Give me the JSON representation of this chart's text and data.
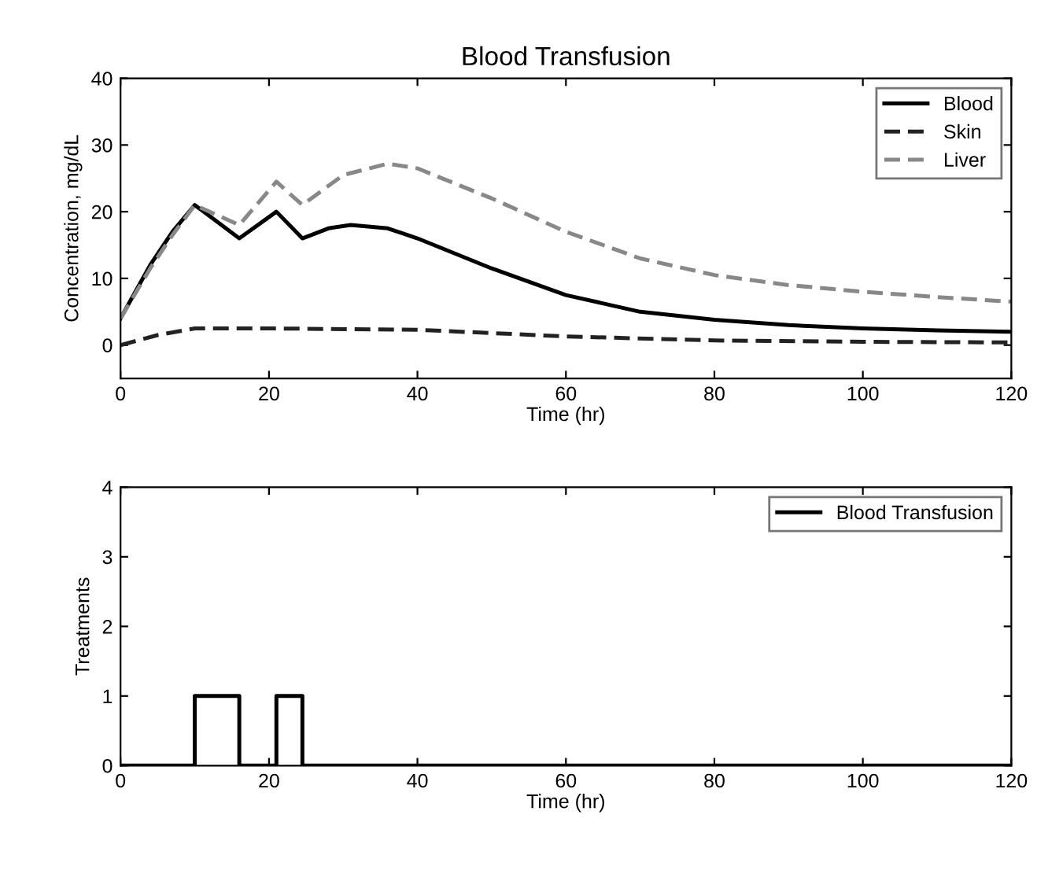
{
  "chart_data": [
    {
      "type": "line",
      "title": "Blood Transfusion",
      "xlabel": "Time (hr)",
      "ylabel": "Concentration, mg/dL",
      "xlim": [
        0,
        120
      ],
      "xticks": [
        0,
        20,
        40,
        60,
        80,
        100,
        120
      ],
      "ylim": [
        -5,
        40
      ],
      "yticks": [
        0,
        10,
        20,
        30,
        40
      ],
      "grid": false,
      "legend": "top right",
      "series": [
        {
          "name": "Blood",
          "color": "#000000",
          "line_style": "solid",
          "x": [
            0,
            4,
            7,
            10,
            16,
            21,
            24.5,
            28,
            31,
            36,
            40,
            50,
            60,
            70,
            80,
            90,
            100,
            110,
            120
          ],
          "values": [
            4,
            12,
            17,
            21,
            16,
            20,
            16,
            17.5,
            18,
            17.5,
            16,
            11.5,
            7.5,
            5,
            3.8,
            3,
            2.5,
            2.2,
            2
          ]
        },
        {
          "name": "Skin",
          "color": "#222222",
          "line_style": "dashed",
          "x": [
            0,
            5,
            10,
            20,
            40,
            60,
            80,
            100,
            120
          ],
          "values": [
            0,
            1.5,
            2.5,
            2.5,
            2.3,
            1.3,
            0.7,
            0.5,
            0.4
          ]
        },
        {
          "name": "Liver",
          "color": "#888888",
          "line_style": "dashed",
          "x": [
            0,
            4,
            7,
            10,
            16,
            21,
            24.5,
            30,
            36,
            40,
            50,
            60,
            70,
            80,
            90,
            100,
            110,
            120
          ],
          "values": [
            4,
            11.5,
            16.5,
            21,
            18,
            24.5,
            21,
            25.5,
            27.2,
            26.5,
            22,
            17,
            13,
            10.5,
            9,
            8,
            7.2,
            6.5
          ]
        }
      ]
    },
    {
      "type": "line",
      "xlabel": "Time (hr)",
      "ylabel": "Treatments",
      "xlim": [
        0,
        120
      ],
      "xticks": [
        0,
        20,
        40,
        60,
        80,
        100,
        120
      ],
      "ylim": [
        0,
        4
      ],
      "yticks": [
        0,
        1,
        2,
        3,
        4
      ],
      "grid": false,
      "legend": "top right",
      "series": [
        {
          "name": "Blood Transfusion",
          "color": "#000000",
          "line_style": "solid",
          "x": [
            0,
            10,
            10,
            16,
            16,
            21,
            21,
            24.5,
            24.5,
            120
          ],
          "values": [
            0,
            0,
            1,
            1,
            0,
            0,
            1,
            1,
            0,
            0
          ]
        }
      ]
    }
  ]
}
